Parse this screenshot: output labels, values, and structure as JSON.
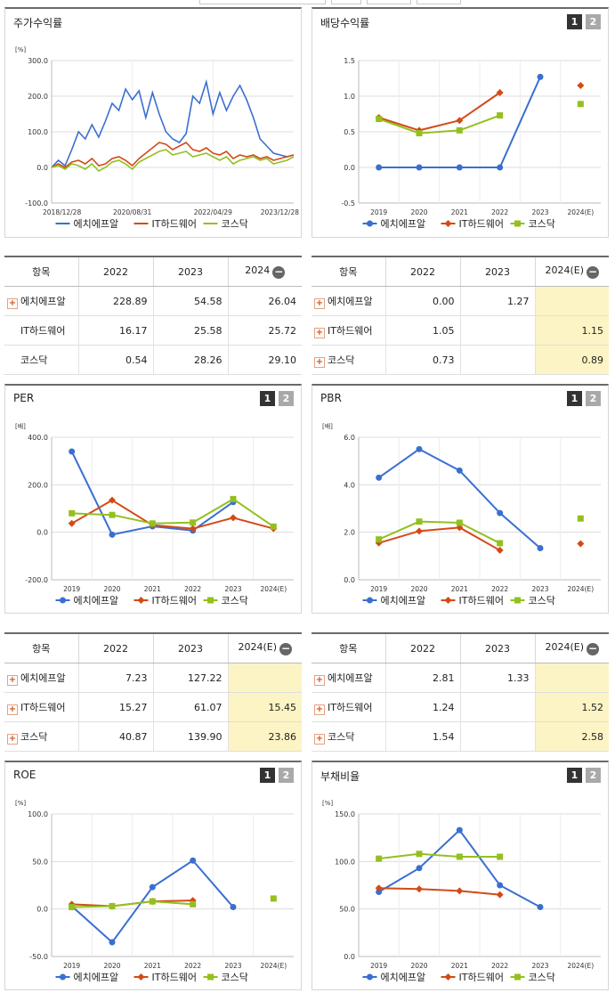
{
  "panels": [
    {
      "id": "stock",
      "title": "주가수익률",
      "buttons": [],
      "unit": "[%]",
      "chart_data": {
        "type": "line",
        "ylim": [
          -100,
          300
        ],
        "yticks": [
          "-100.0",
          "0.0",
          "100.0",
          "200.0",
          "300.0"
        ],
        "xticks": [
          "2018/12/28",
          "2020/08/31",
          "2022/04/29",
          "2023/12/28"
        ],
        "series": [
          {
            "name": "에치에프알",
            "color": "#3a6fd0",
            "values": [
              0,
              20,
              5,
              50,
              100,
              80,
              120,
              85,
              130,
              180,
              160,
              220,
              190,
              215,
              140,
              210,
              150,
              100,
              80,
              70,
              95,
              200,
              180,
              240,
              150,
              210,
              160,
              200,
              230,
              190,
              140,
              80,
              60,
              40,
              35,
              30,
              35
            ]
          },
          {
            "name": "IT하드웨어",
            "color": "#d44a17",
            "values": [
              0,
              10,
              0,
              15,
              20,
              10,
              25,
              5,
              10,
              25,
              30,
              20,
              5,
              25,
              40,
              55,
              70,
              65,
              50,
              60,
              70,
              50,
              45,
              55,
              40,
              35,
              45,
              25,
              35,
              30,
              35,
              25,
              30,
              20,
              25,
              30,
              35
            ]
          },
          {
            "name": "코스닥",
            "color": "#93c01f",
            "values": [
              0,
              5,
              -5,
              10,
              5,
              -5,
              10,
              -10,
              0,
              15,
              20,
              10,
              -5,
              15,
              25,
              35,
              45,
              50,
              35,
              40,
              45,
              30,
              35,
              40,
              30,
              20,
              30,
              10,
              20,
              25,
              30,
              20,
              25,
              10,
              15,
              20,
              30
            ]
          }
        ]
      }
    },
    {
      "id": "dividend",
      "title": "배당수익률",
      "buttons": [
        "1",
        "2"
      ],
      "chart_data": {
        "type": "line",
        "ylim": [
          -0.5,
          1.5
        ],
        "yticks": [
          "-0.5",
          "0.0",
          "0.5",
          "1.0",
          "1.5"
        ],
        "categories": [
          "2019",
          "2020",
          "2021",
          "2022",
          "2023",
          "2024(E)"
        ],
        "series": [
          {
            "name": "에치에프알",
            "color": "#3a6fd0",
            "marker": "circle",
            "values": [
              0.0,
              0.0,
              0.0,
              0.0,
              1.27,
              null
            ]
          },
          {
            "name": "IT하드웨어",
            "color": "#d44a17",
            "marker": "diamond",
            "values": [
              0.7,
              0.52,
              0.66,
              1.05,
              null,
              1.15
            ]
          },
          {
            "name": "코스닥",
            "color": "#93c01f",
            "marker": "square",
            "values": [
              0.68,
              0.48,
              0.52,
              0.73,
              null,
              0.89
            ]
          }
        ]
      }
    },
    {
      "id": "per",
      "title": "PER",
      "buttons": [
        "1",
        "2"
      ],
      "unit": "[배]",
      "chart_data": {
        "type": "line",
        "ylim": [
          -200,
          400
        ],
        "yticks": [
          "-200.0",
          "0.0",
          "200.0",
          "400.0"
        ],
        "categories": [
          "2019",
          "2020",
          "2021",
          "2022",
          "2023",
          "2024(E)"
        ],
        "series": [
          {
            "name": "에치에프알",
            "color": "#3a6fd0",
            "marker": "circle",
            "values": [
              340,
              -10,
              25,
              7.23,
              127.22,
              null
            ]
          },
          {
            "name": "IT하드웨어",
            "color": "#d44a17",
            "marker": "diamond",
            "values": [
              37,
              135,
              30,
              15.27,
              61.07,
              15.45
            ]
          },
          {
            "name": "코스닥",
            "color": "#93c01f",
            "marker": "square",
            "values": [
              80,
              73,
              37,
              40.87,
              139.9,
              23.86
            ]
          }
        ]
      }
    },
    {
      "id": "pbr",
      "title": "PBR",
      "buttons": [
        "1",
        "2"
      ],
      "unit": "[배]",
      "chart_data": {
        "type": "line",
        "ylim": [
          0,
          6
        ],
        "yticks": [
          "0.0",
          "2.0",
          "4.0",
          "6.0"
        ],
        "categories": [
          "2019",
          "2020",
          "2021",
          "2022",
          "2023",
          "2024(E)"
        ],
        "series": [
          {
            "name": "에치에프알",
            "color": "#3a6fd0",
            "marker": "circle",
            "values": [
              4.3,
              5.5,
              4.6,
              2.81,
              1.33,
              null
            ]
          },
          {
            "name": "IT하드웨어",
            "color": "#d44a17",
            "marker": "diamond",
            "values": [
              1.55,
              2.05,
              2.2,
              1.24,
              null,
              1.52
            ]
          },
          {
            "name": "코스닥",
            "color": "#93c01f",
            "marker": "square",
            "values": [
              1.7,
              2.45,
              2.4,
              1.54,
              null,
              2.58
            ]
          }
        ]
      }
    },
    {
      "id": "roe",
      "title": "ROE",
      "buttons": [
        "1",
        "2"
      ],
      "unit": "[%]",
      "chart_data": {
        "type": "line",
        "ylim": [
          -50,
          100
        ],
        "yticks": [
          "-50.0",
          "0.0",
          "50.0",
          "100.0"
        ],
        "categories": [
          "2019",
          "2020",
          "2021",
          "2022",
          "2023",
          "2024(E)"
        ],
        "series": [
          {
            "name": "에치에프알",
            "color": "#3a6fd0",
            "marker": "circle",
            "values": [
              3,
              -35,
              23,
              51,
              2,
              null
            ]
          },
          {
            "name": "IT하드웨어",
            "color": "#d44a17",
            "marker": "diamond",
            "values": [
              5,
              3,
              8,
              9,
              null,
              null
            ]
          },
          {
            "name": "코스닥",
            "color": "#93c01f",
            "marker": "square",
            "values": [
              2,
              3,
              8,
              5,
              null,
              11
            ]
          }
        ]
      }
    },
    {
      "id": "debt",
      "title": "부채비율",
      "buttons": [
        "1",
        "2"
      ],
      "unit": "[%]",
      "chart_data": {
        "type": "line",
        "ylim": [
          0,
          150
        ],
        "yticks": [
          "0.0",
          "50.0",
          "100.0",
          "150.0"
        ],
        "categories": [
          "2019",
          "2020",
          "2021",
          "2022",
          "2023",
          "2024(E)"
        ],
        "series": [
          {
            "name": "에치에프알",
            "color": "#3a6fd0",
            "marker": "circle",
            "values": [
              68,
              93,
              133,
              75,
              52,
              null
            ]
          },
          {
            "name": "IT하드웨어",
            "color": "#d44a17",
            "marker": "diamond",
            "values": [
              72,
              71,
              69,
              65,
              null,
              null
            ]
          },
          {
            "name": "코스닥",
            "color": "#93c01f",
            "marker": "square",
            "values": [
              103,
              108,
              105,
              105,
              null,
              null
            ]
          }
        ]
      }
    }
  ],
  "tables": [
    {
      "id": "tbl-stock",
      "head": [
        "항목",
        "2022",
        "2023",
        "2024"
      ],
      "head_minus": true,
      "hl_col": -1,
      "rows": [
        {
          "label": "에치에프알",
          "plus": true,
          "values": [
            "228.89",
            "54.58",
            "26.04"
          ]
        },
        {
          "label": "IT하드웨어",
          "plus": false,
          "values": [
            "16.17",
            "25.58",
            "25.72"
          ]
        },
        {
          "label": "코스닥",
          "plus": false,
          "values": [
            "0.54",
            "28.26",
            "29.10"
          ]
        }
      ]
    },
    {
      "id": "tbl-dividend",
      "head": [
        "항목",
        "2022",
        "2023",
        "2024(E)"
      ],
      "head_minus": true,
      "hl_col": 3,
      "rows": [
        {
          "label": "에치에프알",
          "plus": true,
          "values": [
            "0.00",
            "1.27",
            ""
          ]
        },
        {
          "label": "IT하드웨어",
          "plus": true,
          "values": [
            "1.05",
            "",
            "1.15"
          ]
        },
        {
          "label": "코스닥",
          "plus": true,
          "values": [
            "0.73",
            "",
            "0.89"
          ]
        }
      ]
    },
    {
      "id": "tbl-per",
      "head": [
        "항목",
        "2022",
        "2023",
        "2024(E)"
      ],
      "head_minus": true,
      "hl_col": 3,
      "rows": [
        {
          "label": "에치에프알",
          "plus": true,
          "values": [
            "7.23",
            "127.22",
            ""
          ]
        },
        {
          "label": "IT하드웨어",
          "plus": true,
          "values": [
            "15.27",
            "61.07",
            "15.45"
          ]
        },
        {
          "label": "코스닥",
          "plus": true,
          "values": [
            "40.87",
            "139.90",
            "23.86"
          ]
        }
      ]
    },
    {
      "id": "tbl-pbr",
      "head": [
        "항목",
        "2022",
        "2023",
        "2024(E)"
      ],
      "head_minus": true,
      "hl_col": 3,
      "rows": [
        {
          "label": "에치에프알",
          "plus": true,
          "values": [
            "2.81",
            "1.33",
            ""
          ]
        },
        {
          "label": "IT하드웨어",
          "plus": true,
          "values": [
            "1.24",
            "",
            "1.52"
          ]
        },
        {
          "label": "코스닥",
          "plus": true,
          "values": [
            "1.54",
            "",
            "2.58"
          ]
        }
      ]
    }
  ],
  "colors": {
    "blue": "#3a6fd0",
    "red": "#d44a17",
    "green": "#93c01f",
    "highlight": "#fcf4c4"
  }
}
